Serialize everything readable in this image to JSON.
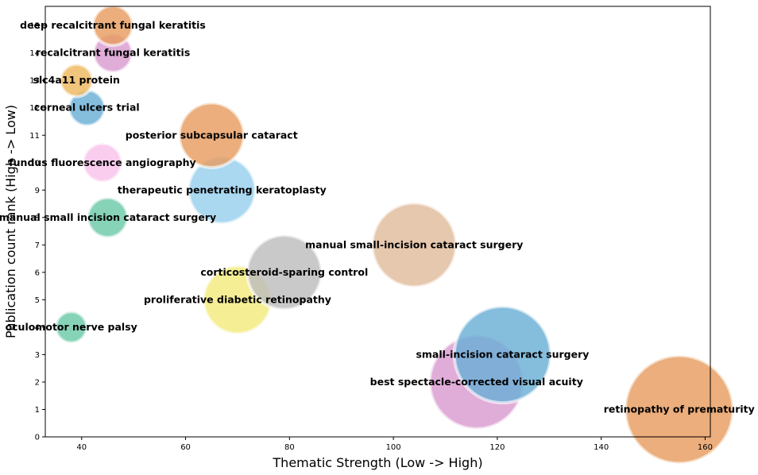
{
  "chart_data": {
    "type": "scatter",
    "subtype": "bubble",
    "xlabel": "Thematic Strength (Low -> High)",
    "ylabel": "Publication count rank (High -> Low)",
    "xlim": [
      33,
      161
    ],
    "ylim": [
      0,
      15.7
    ],
    "xticks": [
      40,
      60,
      80,
      100,
      120,
      140,
      160
    ],
    "yticks": [
      0,
      1,
      2,
      3,
      4,
      5,
      6,
      7,
      8,
      9,
      10,
      11,
      12,
      13,
      14,
      15
    ],
    "grid": false,
    "points": [
      {
        "label": "retinopathy of prematurity",
        "x": 155,
        "y": 1,
        "size": 190,
        "color": "#e69c5f"
      },
      {
        "label": "best spectacle-corrected visual acuity",
        "x": 116,
        "y": 2,
        "size": 165,
        "color": "#d99bd0"
      },
      {
        "label": "small-incision cataract surgery",
        "x": 121,
        "y": 3,
        "size": 170,
        "color": "#6aaed6"
      },
      {
        "label": "oculomotor nerve palsy",
        "x": 38,
        "y": 4,
        "size": 55,
        "color": "#6dc9a8"
      },
      {
        "label": "proliferative diabetic retinopathy",
        "x": 70,
        "y": 5,
        "size": 120,
        "color": "#f3ea7e"
      },
      {
        "label": "corticosteroid-sparing control",
        "x": 79,
        "y": 6,
        "size": 131,
        "color": "#bdbdbd"
      },
      {
        "label": "manual small-incision cataract surgery",
        "x": 104,
        "y": 7,
        "size": 148,
        "color": "#e0bc9c"
      },
      {
        "label": "manual small incision cataract surgery",
        "x": 45,
        "y": 8,
        "size": 70,
        "color": "#6dc9a8"
      },
      {
        "label": "therapeutic penetrating keratoplasty",
        "x": 67,
        "y": 9,
        "size": 118,
        "color": "#97cfee"
      },
      {
        "label": "fundus fluorescence angiography",
        "x": 44,
        "y": 10,
        "size": 68,
        "color": "#f9c2ea"
      },
      {
        "label": "posterior subcapsular cataract",
        "x": 65,
        "y": 11,
        "size": 114,
        "color": "#e69c5f"
      },
      {
        "label": "corneal ulcers trial",
        "x": 41,
        "y": 12,
        "size": 63,
        "color": "#6aaed6"
      },
      {
        "label": "slc4a11 protein",
        "x": 39,
        "y": 13,
        "size": 57,
        "color": "#eeb85e"
      },
      {
        "label": "recalcitrant fungal keratitis",
        "x": 46,
        "y": 14,
        "size": 68,
        "color": "#d99bd0"
      },
      {
        "label": "deep recalcitrant fungal keratitis",
        "x": 46,
        "y": 15,
        "size": 70,
        "color": "#e69c5f"
      }
    ]
  }
}
